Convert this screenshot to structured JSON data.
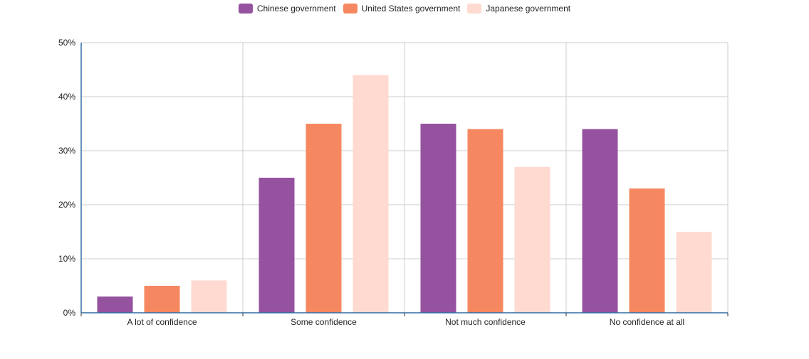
{
  "chart_data": {
    "type": "bar",
    "categories": [
      "A lot of confidence",
      "Some confidence",
      "Not much confidence",
      "No confidence at all"
    ],
    "series": [
      {
        "name": "Chinese government",
        "color": "#95529f",
        "values": [
          3,
          25,
          35,
          34
        ]
      },
      {
        "name": "United States government",
        "color": "#f68861",
        "values": [
          5,
          35,
          34,
          23
        ]
      },
      {
        "name": "Japanese government",
        "color": "#ffdad1",
        "values": [
          6,
          44,
          27,
          15
        ]
      }
    ],
    "ylim": [
      0,
      50
    ],
    "yticks": [
      0,
      10,
      20,
      30,
      40,
      50
    ],
    "ytick_labels": [
      "0%",
      "10%",
      "20%",
      "30%",
      "40%",
      "50%"
    ],
    "grid": true,
    "legend_position": "top-center",
    "axis_color": "#2e6da4",
    "grid_color": "#cccccc"
  }
}
